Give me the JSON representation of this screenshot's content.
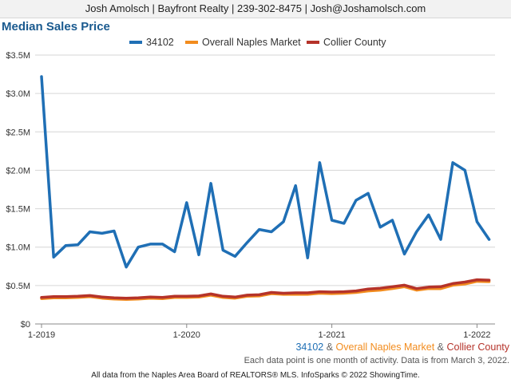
{
  "header": {
    "contact": "Josh Amolsch | Bayfront Realty | 239-302-8475 | Josh@Joshamolsch.com"
  },
  "chart_data": {
    "type": "line",
    "title": "Median Sales Price",
    "xlabel": "",
    "ylabel": "",
    "ylim": [
      0,
      3500000
    ],
    "grid": true,
    "legend_position": "top",
    "x_tick_labels": [
      "1-2019",
      "1-2020",
      "1-2021",
      "1-2022"
    ],
    "y_tick_labels": [
      "$0",
      "$0.5M",
      "$1.0M",
      "$1.5M",
      "$2.0M",
      "$2.5M",
      "$3.0M",
      "$3.5M"
    ],
    "y_ticks": [
      0,
      500000,
      1000000,
      1500000,
      2000000,
      2500000,
      3000000,
      3500000
    ],
    "x": [
      "2019-01",
      "2019-02",
      "2019-03",
      "2019-04",
      "2019-05",
      "2019-06",
      "2019-07",
      "2019-08",
      "2019-09",
      "2019-10",
      "2019-11",
      "2019-12",
      "2020-01",
      "2020-02",
      "2020-03",
      "2020-04",
      "2020-05",
      "2020-06",
      "2020-07",
      "2020-08",
      "2020-09",
      "2020-10",
      "2020-11",
      "2020-12",
      "2021-01",
      "2021-02",
      "2021-03",
      "2021-04",
      "2021-05",
      "2021-06",
      "2021-07",
      "2021-08",
      "2021-09",
      "2021-10",
      "2021-11",
      "2021-12",
      "2022-01",
      "2022-02"
    ],
    "series": [
      {
        "name": "34102",
        "color": "#1f6fb5",
        "values": [
          3220000,
          870000,
          1020000,
          1030000,
          1200000,
          1180000,
          1210000,
          740000,
          1000000,
          1040000,
          1040000,
          940000,
          1580000,
          900000,
          1830000,
          960000,
          880000,
          1060000,
          1230000,
          1200000,
          1330000,
          1800000,
          860000,
          2100000,
          1350000,
          1310000,
          1610000,
          1700000,
          1260000,
          1350000,
          910000,
          1200000,
          1420000,
          1100000,
          2100000,
          2000000,
          1330000,
          1100000
        ]
      },
      {
        "name": "Overall Naples Market",
        "color": "#f28c1e",
        "values": [
          330000,
          340000,
          340000,
          345000,
          355000,
          335000,
          325000,
          320000,
          325000,
          335000,
          330000,
          345000,
          345000,
          350000,
          375000,
          345000,
          335000,
          360000,
          365000,
          395000,
          385000,
          385000,
          385000,
          400000,
          395000,
          400000,
          410000,
          430000,
          440000,
          460000,
          485000,
          440000,
          460000,
          460000,
          505000,
          520000,
          555000,
          550000
        ]
      },
      {
        "name": "Collier County",
        "color": "#b5332a",
        "values": [
          345000,
          355000,
          355000,
          360000,
          370000,
          350000,
          340000,
          335000,
          340000,
          350000,
          345000,
          360000,
          360000,
          365000,
          390000,
          360000,
          350000,
          375000,
          380000,
          410000,
          400000,
          405000,
          405000,
          420000,
          415000,
          420000,
          430000,
          455000,
          465000,
          485000,
          505000,
          460000,
          480000,
          485000,
          525000,
          545000,
          575000,
          570000
        ]
      }
    ]
  },
  "captions": {
    "series_1": "34102",
    "amp_1": " & ",
    "series_2": "Overall Naples Market",
    "amp_2": " & ",
    "series_3": "Collier County",
    "note": "Each data point is one month of activity. Data is from March 3, 2022.",
    "footer": "All data from the Naples Area Board of REALTORS® MLS. InfoSparks © 2022 ShowingTime."
  }
}
